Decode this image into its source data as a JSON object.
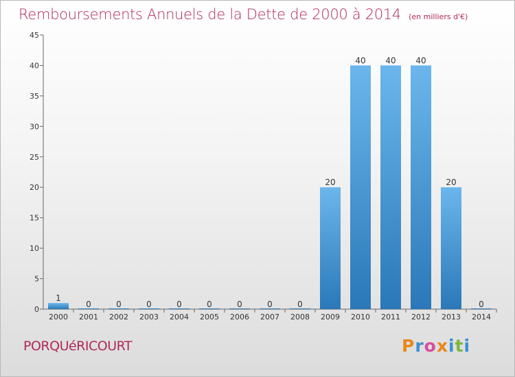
{
  "header": {
    "title": "Remboursements Annuels de la Dette de 2000 à 2014",
    "unit": "(en milliers d'€)"
  },
  "footer": {
    "commune": "PORQUéRICOURT",
    "brand": "Proxiti",
    "brand_colors": [
      "#e8891b",
      "#3b8fd1",
      "#d84ca0",
      "#e8891b",
      "#3b8fd1",
      "#7cb83a",
      "#3b8fd1"
    ]
  },
  "chart_data": {
    "type": "bar",
    "title": "Remboursements Annuels de la Dette de 2000 à 2014",
    "subtitle": "(en milliers d'€)",
    "categories": [
      "2000",
      "2001",
      "2002",
      "2003",
      "2004",
      "2005",
      "2006",
      "2007",
      "2008",
      "2009",
      "2010",
      "2011",
      "2012",
      "2013",
      "2014"
    ],
    "values": [
      1,
      0,
      0,
      0,
      0,
      0,
      0,
      0,
      0,
      20,
      40,
      40,
      40,
      20,
      0
    ],
    "data_labels": [
      "1",
      "0",
      "0",
      "0",
      "0",
      "0",
      "0",
      "0",
      "0",
      "20",
      "40",
      "40",
      "40",
      "20",
      "0"
    ],
    "ylim": [
      0,
      45
    ],
    "yticks": [
      0,
      5,
      10,
      15,
      20,
      25,
      30,
      35,
      40,
      45
    ],
    "xlabel": "",
    "ylabel": "",
    "grid": false,
    "bar_color_light": "#6bb6ec",
    "bar_color_dark": "#2a78b8"
  }
}
